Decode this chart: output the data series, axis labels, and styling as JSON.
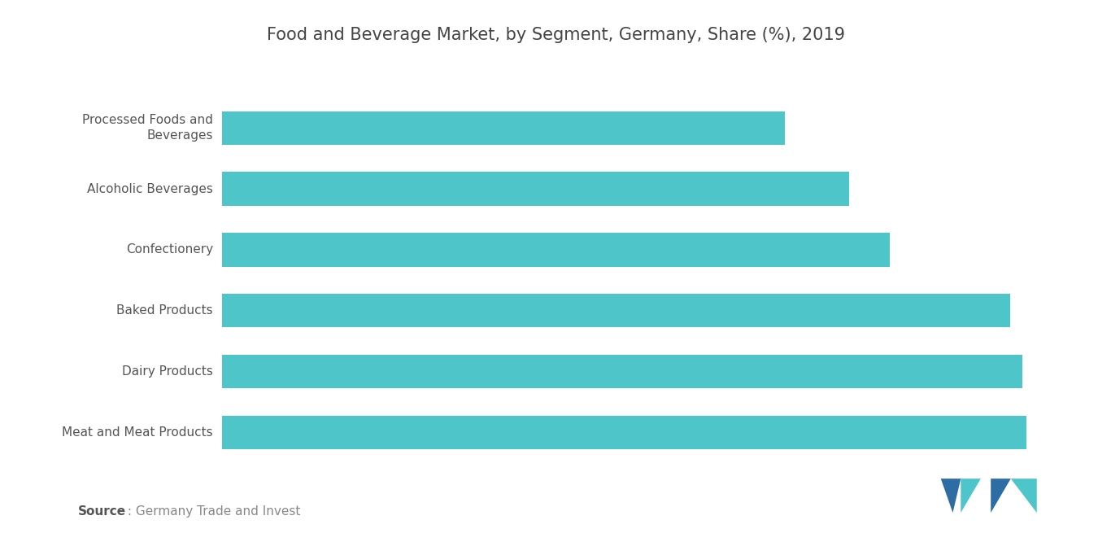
{
  "title": "Food and Beverage Market, by Segment, Germany, Share (%), 2019",
  "categories": [
    "Meat and Meat Products",
    "Dairy Products",
    "Baked Products",
    "Confectionery",
    "Alcoholic Beverages",
    "Processed Foods and\nBeverages"
  ],
  "values": [
    100,
    99.5,
    98,
    83,
    78,
    70
  ],
  "bar_color": "#4EC6C9",
  "background_color": "#ffffff",
  "title_color": "#444444",
  "label_color": "#555555",
  "source_bold": "Source",
  "source_rest": " : Germany Trade and Invest",
  "title_fontsize": 15,
  "label_fontsize": 11,
  "source_fontsize": 11,
  "logo_color_dark": "#2E6DA4",
  "logo_color_light": "#4EC6C9"
}
